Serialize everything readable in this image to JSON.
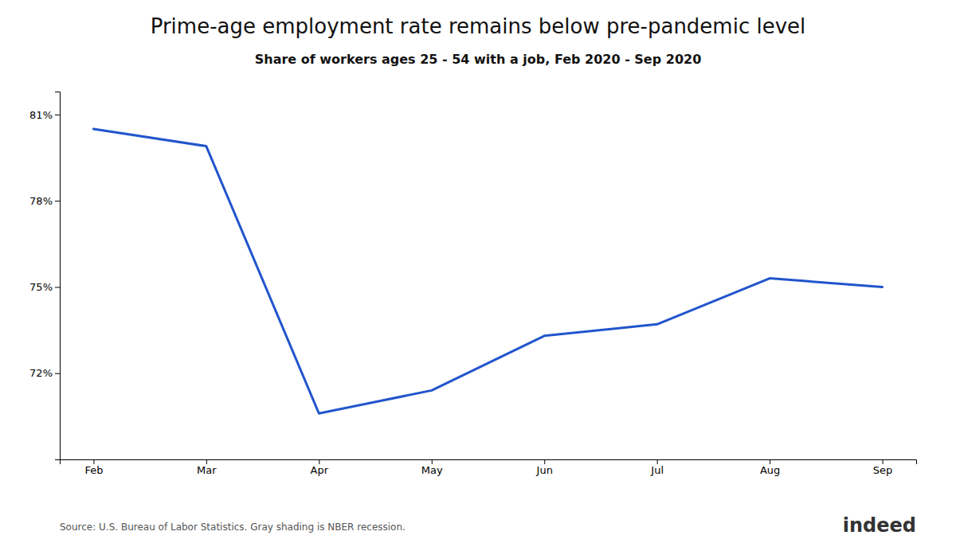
{
  "chart_data": {
    "type": "line",
    "title": "Prime-age employment rate remains below pre-pandemic level",
    "subtitle": "Share of workers ages 25 - 54 with a job, Feb 2020 - Sep 2020",
    "categories": [
      "Feb",
      "Mar",
      "Apr",
      "May",
      "Jun",
      "Jul",
      "Aug",
      "Sep"
    ],
    "values": [
      80.5,
      79.9,
      70.6,
      71.4,
      73.3,
      73.7,
      75.3,
      75.0
    ],
    "color": "#2255cc",
    "ylim": [
      69.0,
      81.8
    ],
    "yticks": [
      {
        "value": 72,
        "label": "72%"
      },
      {
        "value": 75,
        "label": "75%"
      },
      {
        "value": 78,
        "label": "78%"
      },
      {
        "value": 81,
        "label": "81%"
      }
    ],
    "grid": false,
    "annotations": [
      "Source: U.S. Bureau of Labor Statistics. Gray shading is NBER recession.",
      "indeed"
    ]
  }
}
